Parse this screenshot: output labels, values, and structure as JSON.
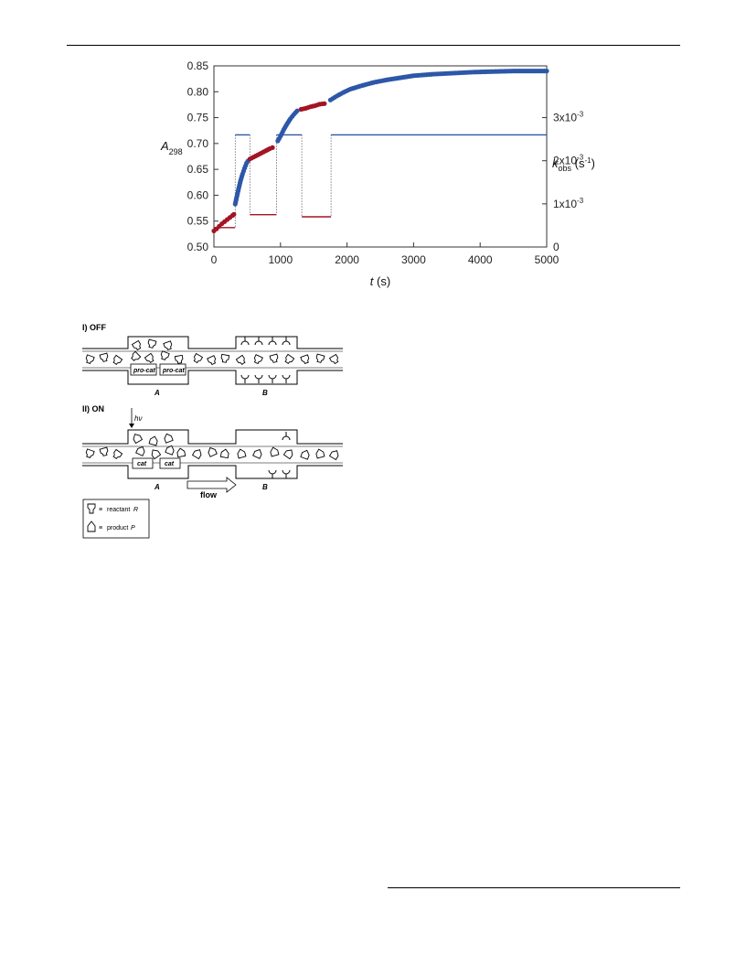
{
  "chart_data": {
    "type": "scatter",
    "xlabel": "t (s)",
    "ylabel_left": "A298",
    "ylabel_right": "kobs (s-1)",
    "xlim": [
      0,
      5000
    ],
    "ylim_left": [
      0.5,
      0.85
    ],
    "ylim_right": [
      0,
      0.0042
    ],
    "x_ticks": [
      "0",
      "1000",
      "2000",
      "3000",
      "4000",
      "5000"
    ],
    "y_ticks_left": [
      "0.50",
      "0.55",
      "0.60",
      "0.65",
      "0.70",
      "0.75",
      "0.80",
      "0.85"
    ],
    "y_ticks_right": [
      "0",
      "1x10-3",
      "2x10-3",
      "3x10-3"
    ],
    "grid": false,
    "series": [
      {
        "color": "#a31424",
        "points": [
          [
            0,
            0.531
          ],
          [
            40,
            0.535
          ],
          [
            80,
            0.54
          ],
          [
            120,
            0.545
          ],
          [
            160,
            0.549
          ],
          [
            200,
            0.553
          ],
          [
            240,
            0.557
          ],
          [
            280,
            0.561
          ],
          [
            300,
            0.563
          ]
        ]
      },
      {
        "color": "#2d57a8",
        "points": [
          [
            320,
            0.583
          ],
          [
            340,
            0.595
          ],
          [
            370,
            0.612
          ],
          [
            400,
            0.628
          ],
          [
            430,
            0.641
          ],
          [
            460,
            0.652
          ],
          [
            490,
            0.662
          ],
          [
            510,
            0.666
          ]
        ]
      },
      {
        "color": "#a31424",
        "points": [
          [
            540,
            0.67
          ],
          [
            600,
            0.674
          ],
          [
            660,
            0.678
          ],
          [
            720,
            0.682
          ],
          [
            780,
            0.686
          ],
          [
            840,
            0.69
          ],
          [
            880,
            0.692
          ]
        ]
      },
      {
        "color": "#2d57a8",
        "points": [
          [
            960,
            0.705
          ],
          [
            1000,
            0.714
          ],
          [
            1050,
            0.727
          ],
          [
            1100,
            0.738
          ],
          [
            1150,
            0.748
          ],
          [
            1200,
            0.756
          ],
          [
            1250,
            0.763
          ]
        ]
      },
      {
        "color": "#a31424",
        "points": [
          [
            1310,
            0.766
          ],
          [
            1380,
            0.768
          ],
          [
            1450,
            0.771
          ],
          [
            1520,
            0.773
          ],
          [
            1590,
            0.776
          ],
          [
            1660,
            0.777
          ]
        ]
      },
      {
        "color": "#2d57a8",
        "points": [
          [
            1750,
            0.784
          ],
          [
            1850,
            0.792
          ],
          [
            1950,
            0.799
          ],
          [
            2050,
            0.805
          ],
          [
            2200,
            0.811
          ],
          [
            2400,
            0.818
          ],
          [
            2600,
            0.823
          ],
          [
            2800,
            0.827
          ],
          [
            3000,
            0.831
          ],
          [
            3300,
            0.834
          ],
          [
            3600,
            0.836
          ],
          [
            3900,
            0.838
          ],
          [
            4200,
            0.839
          ],
          [
            4500,
            0.84
          ],
          [
            4800,
            0.84
          ],
          [
            5000,
            0.84
          ]
        ]
      }
    ],
    "kobs_series": [
      {
        "color": "#a31424",
        "segments": [
          [
            0,
            320,
            0.00045
          ],
          [
            540,
            940,
            0.00075
          ],
          [
            1320,
            1760,
            0.0007
          ]
        ]
      },
      {
        "color": "#2d57a8",
        "segments": [
          [
            320,
            540,
            0.0026
          ],
          [
            940,
            1320,
            0.0026
          ],
          [
            1760,
            5000,
            0.0026
          ]
        ]
      }
    ]
  },
  "scheme": {
    "off_label": "I) OFF",
    "on_label": "II) ON",
    "compartment_a": "A",
    "compartment_b": "B",
    "procat_label": "pro-cat",
    "cat_label": "cat",
    "hv_label": "hν",
    "flow_label": "flow",
    "legend_equiv": "≡",
    "legend_reactant": "reactant",
    "legend_reactant_symbol": "R",
    "legend_product": "product",
    "legend_product_symbol": "P"
  }
}
